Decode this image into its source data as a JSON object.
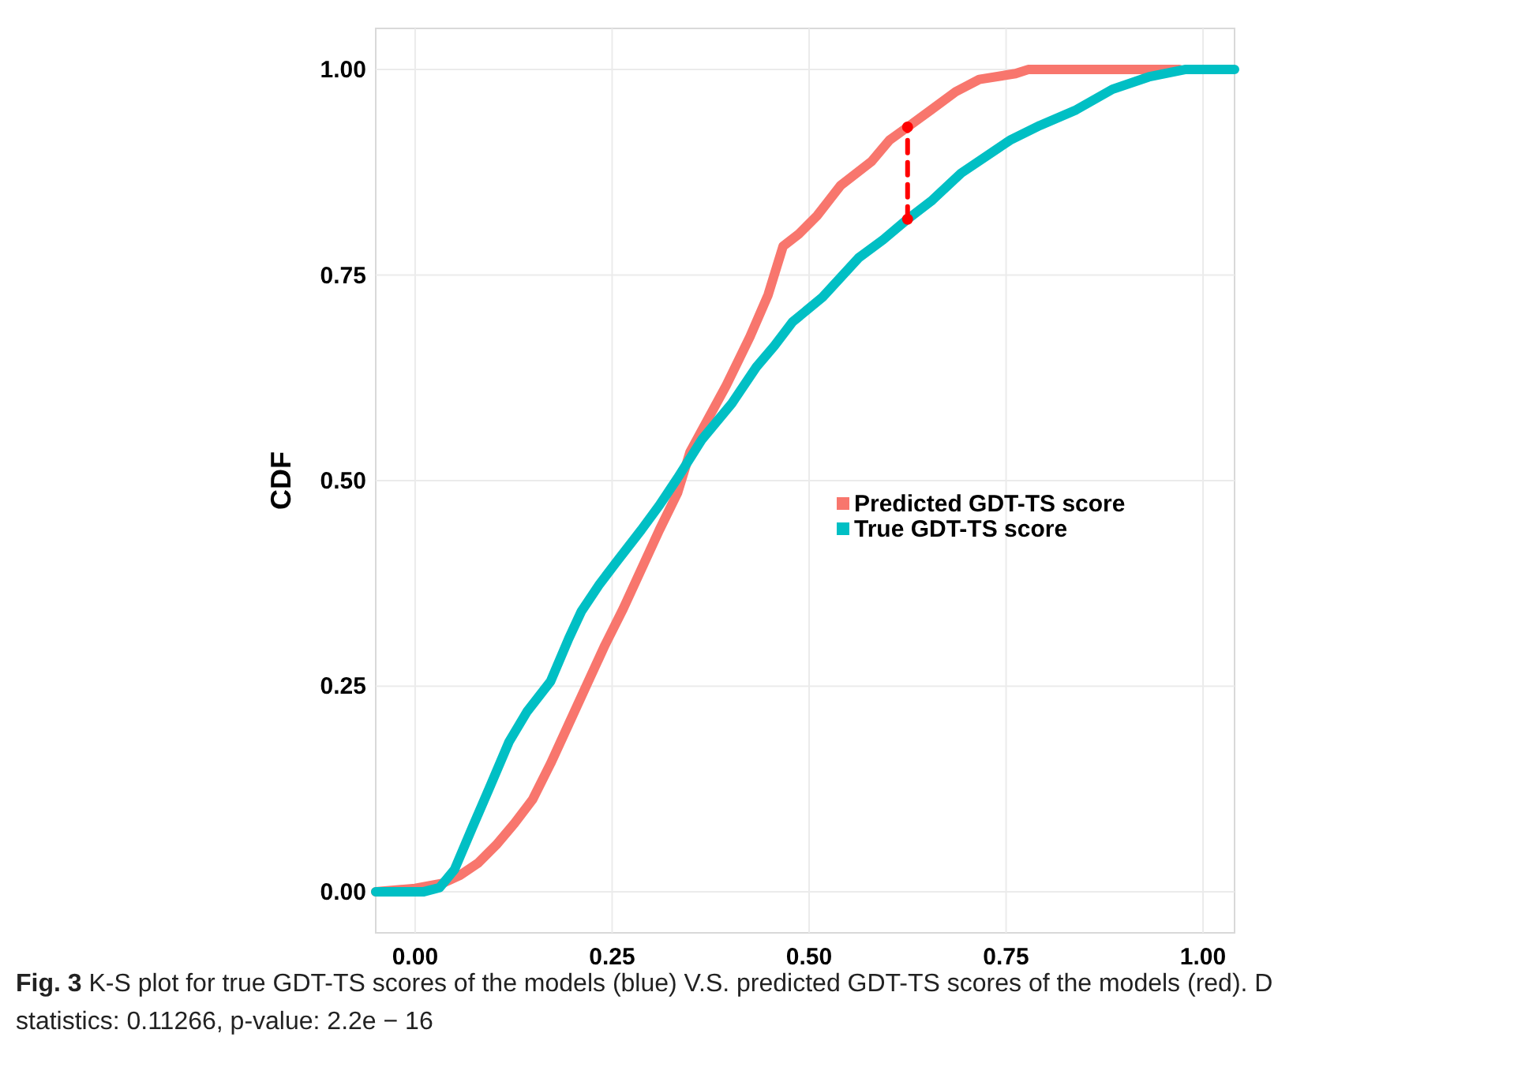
{
  "chart_data": {
    "type": "line",
    "ylabel": "CDF",
    "xlim": [
      -0.05,
      1.04
    ],
    "ylim": [
      -0.05,
      1.05
    ],
    "xticks": [
      {
        "value": 0,
        "label": "0.00"
      },
      {
        "value": 0.25,
        "label": "0.25"
      },
      {
        "value": 0.5,
        "label": "0.50"
      },
      {
        "value": 0.75,
        "label": "0.75"
      },
      {
        "value": 1,
        "label": "1.00"
      }
    ],
    "yticks": [
      {
        "value": 0,
        "label": "0.00"
      },
      {
        "value": 0.25,
        "label": "0.25"
      },
      {
        "value": 0.5,
        "label": "0.50"
      },
      {
        "value": 0.75,
        "label": "0.75"
      },
      {
        "value": 1,
        "label": "1.00"
      }
    ],
    "grid": true,
    "legend": "right",
    "marker": "none",
    "line_style": "solid",
    "series": [
      {
        "name": "Predicted GDT-TS score",
        "color": "#f8766d",
        "x": [
          -0.05,
          0,
          0.034,
          0.057,
          0.08,
          0.103,
          0.126,
          0.149,
          0.172,
          0.195,
          0.218,
          0.241,
          0.264,
          0.287,
          0.31,
          0.333,
          0.349,
          0.395,
          0.425,
          0.448,
          0.467,
          0.487,
          0.51,
          0.54,
          0.579,
          0.602,
          0.625,
          0.655,
          0.686,
          0.716,
          0.762,
          0.778,
          0.97
        ],
        "values": [
          0,
          0.004,
          0.01,
          0.02,
          0.035,
          0.057,
          0.083,
          0.112,
          0.156,
          0.204,
          0.252,
          0.3,
          0.344,
          0.392,
          0.44,
          0.485,
          0.535,
          0.616,
          0.675,
          0.726,
          0.785,
          0.8,
          0.822,
          0.859,
          0.888,
          0.914,
          0.93,
          0.951,
          0.973,
          0.988,
          0.995,
          1,
          1
        ]
      },
      {
        "name": "True GDT-TS score",
        "color": "#00bfc4",
        "x": [
          -0.05,
          0.011,
          0.031,
          0.05,
          0.073,
          0.096,
          0.119,
          0.142,
          0.172,
          0.195,
          0.211,
          0.234,
          0.257,
          0.287,
          0.31,
          0.333,
          0.364,
          0.402,
          0.433,
          0.456,
          0.479,
          0.517,
          0.563,
          0.594,
          0.625,
          0.655,
          0.693,
          0.755,
          0.793,
          0.839,
          0.885,
          0.931,
          0.977,
          1.04
        ],
        "values": [
          0,
          0,
          0.005,
          0.027,
          0.079,
          0.13,
          0.182,
          0.219,
          0.256,
          0.308,
          0.341,
          0.374,
          0.403,
          0.44,
          0.47,
          0.503,
          0.55,
          0.594,
          0.638,
          0.664,
          0.693,
          0.723,
          0.771,
          0.793,
          0.818,
          0.84,
          0.874,
          0.914,
          0.932,
          0.951,
          0.976,
          0.991,
          1,
          1
        ]
      },
      {
        "color": "#ff0000",
        "x": [
          0.625,
          0.625
        ],
        "values": [
          0.818,
          0.93
        ],
        "line_style": "dashed",
        "marker": "circle"
      }
    ],
    "annotations": [
      "Fig. 3  K-S plot for true GDT-TS scores of the models (blue) V.S. predicted GDT-TS scores of the models (red). D statistics: 0.11266, p-value: 2.2e − 16"
    ]
  }
}
